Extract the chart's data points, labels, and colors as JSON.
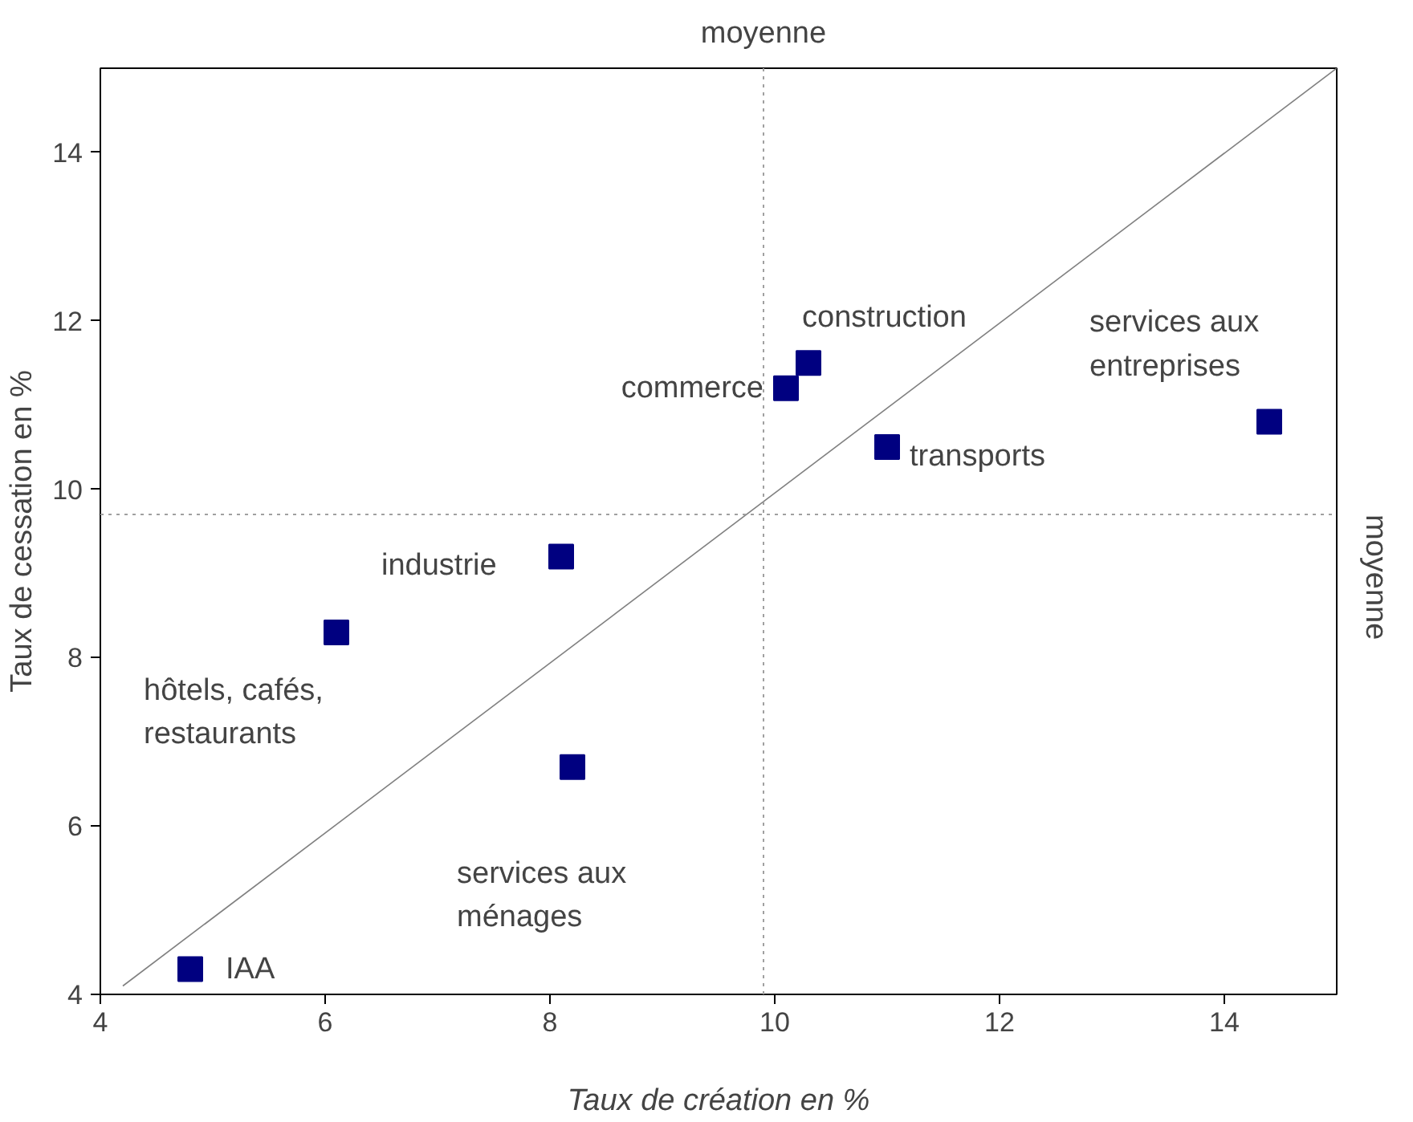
{
  "chart_data": {
    "type": "scatter",
    "xlabel": "Taux de création en %",
    "ylabel": "Taux de cessation en %",
    "xlim": [
      4,
      15
    ],
    "ylim": [
      4,
      15
    ],
    "xticks": [
      4,
      6,
      8,
      10,
      12,
      14
    ],
    "yticks": [
      4,
      6,
      8,
      10,
      12,
      14
    ],
    "grid": false,
    "series": [
      {
        "marker": "square",
        "color": "#000080",
        "x": [
          4.8,
          6.1,
          8.1,
          8.2,
          10.1,
          10.3,
          11.0,
          14.4
        ],
        "values": [
          4.3,
          8.3,
          9.2,
          6.7,
          11.2,
          11.5,
          10.5,
          10.8
        ]
      },
      {
        "type": "line",
        "color": "#808080",
        "x": [
          4.2,
          15
        ],
        "values": [
          4.1,
          15
        ]
      }
    ],
    "ref_lines": [
      {
        "axis": "x",
        "value": 9.9,
        "label": "moyenne",
        "color": "#a0a0a0",
        "line_style": "dotted"
      },
      {
        "axis": "y",
        "value": 9.7,
        "label": "moyenne",
        "color": "#a0a0a0",
        "line_style": "dotted"
      }
    ],
    "annotations": [
      {
        "text": "IAA",
        "x": 4.8,
        "y": 4.3
      },
      {
        "text": "hôtels, cafés,\nrestaurants",
        "x": 6.1,
        "y": 8.3
      },
      {
        "text": "industrie",
        "x": 8.1,
        "y": 9.2
      },
      {
        "text": "services aux\nménages",
        "x": 8.2,
        "y": 6.7
      },
      {
        "text": "commerce",
        "x": 10.1,
        "y": 11.2
      },
      {
        "text": "construction",
        "x": 10.3,
        "y": 11.5
      },
      {
        "text": "transports",
        "x": 11.0,
        "y": 10.5
      },
      {
        "text": "services aux\nentreprises",
        "x": 14.4,
        "y": 10.8
      }
    ]
  }
}
